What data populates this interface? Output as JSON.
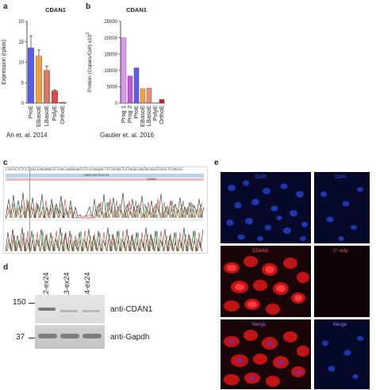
{
  "panels": {
    "a": {
      "letter": "a",
      "title": "CDAN1",
      "ylabel": "Expression (rpkm)",
      "caption": "An et. al. 2014"
    },
    "b": {
      "letter": "b",
      "title": "CDAN1",
      "ylabel": "Protein (Copies/Cell) x10",
      "ylabel_sup": "3",
      "caption": "Gautier et. al. 2016"
    },
    "c": {
      "letter": "c",
      "sequence": "CCATGCTCTCCTGGCCCAGGAAGCCCTGACCAGAGGAGTCTCCCCAGAACTTCTACAGCTCCTAGGCCAGTGCGGCCTGCGCTCCAGCAC",
      "track1_label": "Cdan1-001 Exon 24",
      "track2_label": "CDAN1"
    },
    "d": {
      "letter": "d",
      "lanes": [
        "K2-ex24",
        "K3-ex24",
        "K4-ex24"
      ],
      "marker_top": "150",
      "marker_bottom": "37",
      "label_top": "anti-CDAN1",
      "label_bottom": "anti-Gapdh"
    },
    "e": {
      "letter": "e",
      "labels": {
        "dapi_left": "DAPI",
        "dapi_right": "DAPI",
        "cdan1": "CDAN1",
        "secondary": "2° only",
        "merge_left": "Merge",
        "merge_right": "Merge"
      },
      "colors": {
        "dapi": "#3a5cff",
        "cdan1": "#e21a1a",
        "merge_text": "#a070ff",
        "background": "#06092a"
      }
    }
  },
  "chart_data": [
    {
      "type": "bar",
      "title": "CDAN1",
      "ylabel": "Expression (rpkm)",
      "categories": [
        "ProE",
        "EBasoE",
        "LBasoE",
        "PolyE",
        "OrthoE"
      ],
      "values": [
        13.5,
        11.5,
        8.0,
        3.0,
        0.2
      ],
      "errors": [
        3.0,
        1.5,
        1.0,
        0.2,
        0
      ],
      "ylim": [
        0,
        20
      ],
      "yticks": [
        0,
        5,
        10,
        15,
        20
      ],
      "colors": [
        "#5b5bf0",
        "#f0a040",
        "#e07860",
        "#e04848",
        "#e04848"
      ],
      "grid": false
    },
    {
      "type": "bar",
      "title": "CDAN1",
      "ylabel": "Protein (Copies/Cell) x10³",
      "categories": [
        "Prog 1",
        "Prog 2",
        "ProE",
        "EBasoE",
        "LBasoE",
        "PolyE",
        "OrthoE"
      ],
      "values": [
        20000,
        8300,
        10800,
        4400,
        4600,
        0,
        1100
      ],
      "ylim": [
        0,
        25000
      ],
      "yticks": [
        0,
        5000,
        10000,
        15000,
        20000,
        25000
      ],
      "colors": [
        "#dd99ee",
        "#c055dd",
        "#5b5bf0",
        "#f0a040",
        "#ec8a72",
        "#e04848",
        "#cc2020"
      ],
      "grid": false
    }
  ]
}
